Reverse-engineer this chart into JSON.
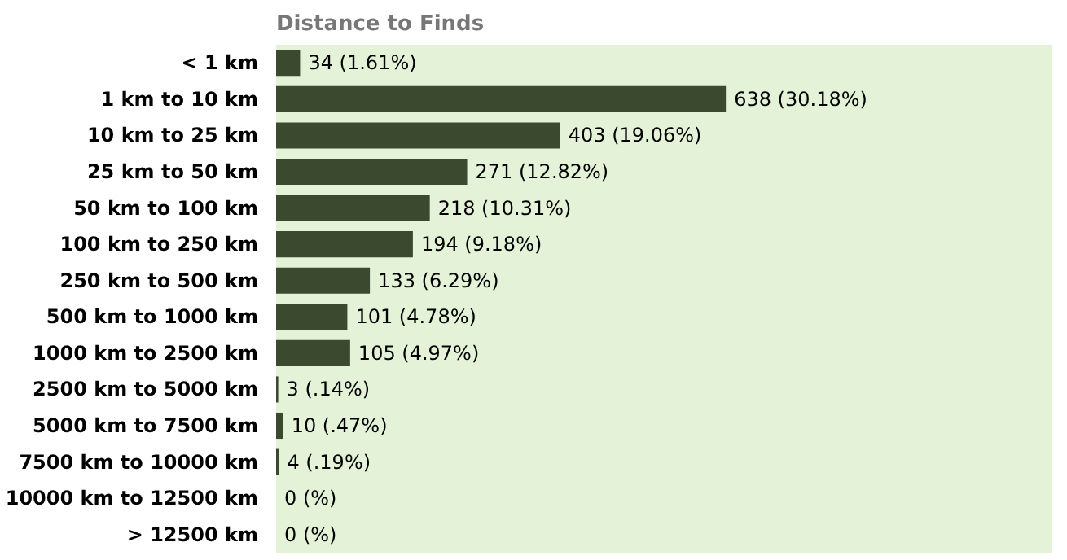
{
  "chart_data": {
    "type": "bar",
    "orientation": "horizontal",
    "title": "Distance to Finds",
    "categories": [
      "< 1 km",
      "1 km to 10 km",
      "10 km to 25 km",
      "25 km to 50 km",
      "50 km to 100 km",
      "100 km to 250 km",
      "250 km to 500 km",
      "500 km to 1000 km",
      "1000 km to 2500 km",
      "2500 km to 5000 km",
      "5000 km to 7500 km",
      "7500 km to 10000 km",
      "10000 km to 12500 km",
      "> 12500 km"
    ],
    "values": [
      34,
      638,
      403,
      271,
      218,
      194,
      133,
      101,
      105,
      3,
      10,
      4,
      0,
      0
    ],
    "value_labels": [
      "34 (1.61%)",
      "638 (30.18%)",
      "403 (19.06%)",
      "271 (12.82%)",
      "218 (10.31%)",
      "194 (9.18%)",
      "133 (6.29%)",
      "101 (4.78%)",
      "105 (4.97%)",
      "3 (.14%)",
      "10 (.47%)",
      "4 (.19%)",
      "0 (%)",
      "0 (%)"
    ],
    "color": "#3b4a2f",
    "xlim": [
      0,
      1100
    ]
  }
}
